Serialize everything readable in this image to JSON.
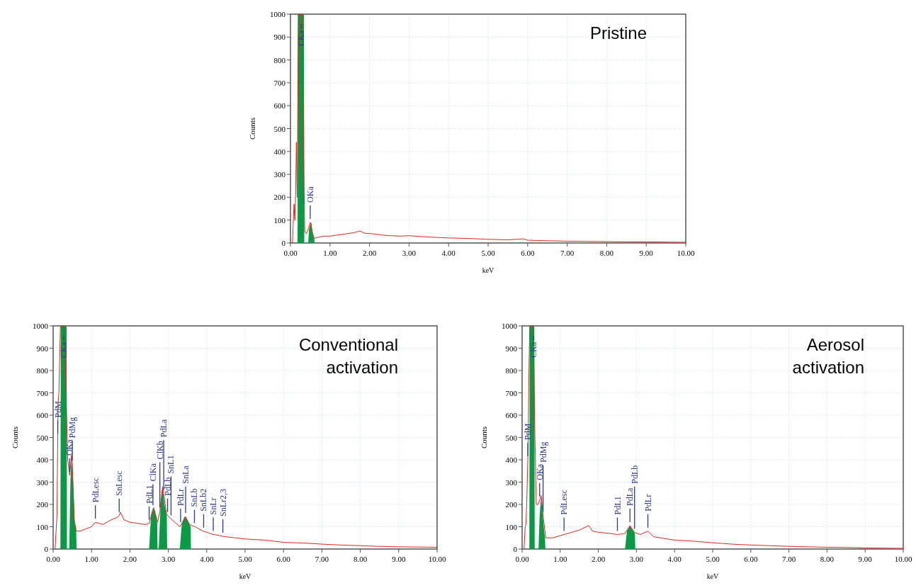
{
  "chart_data": [
    {
      "type": "line",
      "title": "Pristine",
      "xlabel": "keV",
      "ylabel": "Counts",
      "grid": true,
      "xlim": [
        0,
        10
      ],
      "xticks": [
        {
          "value": 0,
          "label": "0.00"
        },
        {
          "value": 1,
          "label": "1.00"
        },
        {
          "value": 2,
          "label": "2.00"
        },
        {
          "value": 3,
          "label": "3.00"
        },
        {
          "value": 4,
          "label": "4.00"
        },
        {
          "value": 5,
          "label": "5.00"
        },
        {
          "value": 6,
          "label": "6.00"
        },
        {
          "value": 7,
          "label": "7.00"
        },
        {
          "value": 8,
          "label": "8.00"
        },
        {
          "value": 9,
          "label": "9.00"
        },
        {
          "value": 10,
          "label": "10.00"
        }
      ],
      "ylim": [
        0,
        1000
      ],
      "yticks": [
        0,
        100,
        200,
        300,
        400,
        500,
        600,
        700,
        800,
        900,
        1000
      ],
      "series": [
        {
          "type": "area",
          "color": "#0a9a46",
          "x": [
            0.18,
            0.19,
            0.34,
            0.35,
            0.36,
            0.45,
            0.47,
            0.5,
            0.53,
            0.56,
            0.6,
            0.61
          ],
          "values": [
            0,
            1000,
            1000,
            0,
            null,
            0,
            60,
            80,
            90,
            40,
            20,
            0
          ]
        },
        {
          "color": "#e8251b",
          "x": [
            0.05,
            0.09,
            0.11,
            0.13,
            0.15,
            0.17,
            0.2,
            0.27,
            0.3,
            0.34,
            0.36,
            0.4,
            0.45,
            0.5,
            0.55,
            0.6,
            0.7,
            0.85,
            1.0,
            1.2,
            1.4,
            1.6,
            1.75,
            1.9,
            2.1,
            2.3,
            2.5,
            2.8,
            3.0,
            3.3,
            3.6,
            4.0,
            4.5,
            5.0,
            5.5,
            5.9,
            6.0,
            6.5,
            7.0,
            7.5,
            8.0,
            8.5,
            9.0,
            9.5,
            10.0
          ],
          "values": [
            0,
            170,
            100,
            210,
            440,
            200,
            1000,
            1000,
            1000,
            300,
            50,
            40,
            60,
            90,
            50,
            20,
            25,
            30,
            30,
            35,
            40,
            45,
            52,
            42,
            40,
            35,
            32,
            30,
            32,
            28,
            25,
            22,
            20,
            16,
            14,
            18,
            12,
            10,
            8,
            7,
            6,
            5,
            5,
            4,
            3
          ]
        }
      ],
      "annotations": [
        {
          "text": "CKa",
          "x": 0.27,
          "y": 1000
        },
        {
          "text": "OKa",
          "x": 0.5,
          "y": 90
        }
      ]
    },
    {
      "type": "line",
      "title": "Conventional activation",
      "xlabel": "keV",
      "ylabel": "Counts",
      "grid": true,
      "xlim": [
        0,
        10
      ],
      "xticks": [
        {
          "value": 0,
          "label": "0.00"
        },
        {
          "value": 1,
          "label": "1.00"
        },
        {
          "value": 2,
          "label": "2.00"
        },
        {
          "value": 3,
          "label": "3.00"
        },
        {
          "value": 4,
          "label": "4.00"
        },
        {
          "value": 5,
          "label": "5.00"
        },
        {
          "value": 6,
          "label": "6.00"
        },
        {
          "value": 7,
          "label": "7.00"
        },
        {
          "value": 8,
          "label": "8.00"
        },
        {
          "value": 9,
          "label": "9.00"
        },
        {
          "value": 10,
          "label": "10.00"
        }
      ],
      "ylim": [
        0,
        1000
      ],
      "yticks": [
        0,
        100,
        200,
        300,
        400,
        500,
        600,
        700,
        800,
        900,
        1000
      ],
      "series": [
        {
          "type": "area",
          "color": "#0a9a46",
          "x": [
            0.19,
            0.2,
            0.35,
            0.36,
            0.37,
            0.42,
            0.45,
            0.48,
            0.52,
            0.56,
            0.6,
            0.61,
            0.62,
            2.5,
            2.55,
            2.62,
            2.68,
            2.71,
            2.72,
            2.73,
            2.75,
            2.8,
            2.85,
            2.9,
            2.96,
            2.97,
            2.98,
            3.3,
            3.35,
            3.42,
            3.5,
            3.58,
            3.59
          ],
          "values": [
            0,
            1000,
            1000,
            0,
            null,
            0,
            300,
            420,
            300,
            120,
            90,
            0,
            null,
            0,
            150,
            185,
            150,
            120,
            0,
            null,
            0,
            200,
            280,
            200,
            150,
            0,
            null,
            0,
            110,
            145,
            130,
            100,
            0
          ]
        },
        {
          "color": "#e8251b",
          "x": [
            0.05,
            0.1,
            0.12,
            0.13,
            0.15,
            0.19,
            0.27,
            0.3,
            0.33,
            0.38,
            0.43,
            0.48,
            0.5,
            0.55,
            0.6,
            0.7,
            0.85,
            1.0,
            1.1,
            1.3,
            1.5,
            1.65,
            1.72,
            1.75,
            1.85,
            2.0,
            2.2,
            2.4,
            2.5,
            2.6,
            2.62,
            2.72,
            2.78,
            2.85,
            2.88,
            2.95,
            2.98,
            3.07,
            3.1,
            3.3,
            3.32,
            3.45,
            3.55,
            3.68,
            3.7,
            3.9,
            3.92,
            4.17,
            4.2,
            4.42,
            4.5,
            5.0,
            5.5,
            6.0,
            6.5,
            7.0,
            7.5,
            8.0,
            8.5,
            9.0,
            9.5,
            10.0
          ],
          "values": [
            0,
            150,
            500,
            660,
            700,
            1000,
            1000,
            1000,
            740,
            400,
            330,
            420,
            380,
            130,
            80,
            80,
            90,
            100,
            120,
            110,
            130,
            140,
            150,
            165,
            130,
            120,
            115,
            110,
            115,
            180,
            185,
            120,
            170,
            280,
            250,
            160,
            150,
            135,
            130,
            100,
            105,
            145,
            110,
            100,
            100,
            80,
            80,
            65,
            65,
            57,
            55,
            45,
            40,
            30,
            27,
            22,
            18,
            15,
            12,
            10,
            9,
            8
          ]
        }
      ],
      "annotations": [
        {
          "text": "PdM",
          "x": 0.12,
          "y": 500
        },
        {
          "text": "CKa",
          "x": 0.27,
          "y": 1000
        },
        {
          "text": "OKa",
          "x": 0.43,
          "y": 330
        },
        {
          "text": "PdMg",
          "x": 0.5,
          "y": 380
        },
        {
          "text": "PdLesc",
          "x": 1.1,
          "y": 120
        },
        {
          "text": "SnLesc",
          "x": 1.72,
          "y": 150
        },
        {
          "text": "PdL1",
          "x": 2.5,
          "y": 115
        },
        {
          "text": "ClKa",
          "x": 2.6,
          "y": 180
        },
        {
          "text": "ClKb",
          "x": 2.78,
          "y": 170
        },
        {
          "text": "PdLa",
          "x": 2.88,
          "y": 250
        },
        {
          "text": "PdLb",
          "x": 2.98,
          "y": 150
        },
        {
          "text": "SnL1",
          "x": 3.07,
          "y": 135
        },
        {
          "text": "PdLr",
          "x": 3.32,
          "y": 105
        },
        {
          "text": "SnLa",
          "x": 3.45,
          "y": 145
        },
        {
          "text": "SnLb",
          "x": 3.68,
          "y": 100
        },
        {
          "text": "SnLb2",
          "x": 3.92,
          "y": 80
        },
        {
          "text": "SnLr",
          "x": 4.17,
          "y": 65
        },
        {
          "text": "SnLr2,3",
          "x": 4.42,
          "y": 57
        }
      ]
    },
    {
      "type": "line",
      "title": "Aerosol activation",
      "xlabel": "keV",
      "ylabel": "Counts",
      "grid": true,
      "xlim": [
        0,
        10
      ],
      "xticks": [
        {
          "value": 0,
          "label": "0.00"
        },
        {
          "value": 1,
          "label": "1.00"
        },
        {
          "value": 2,
          "label": "2.00"
        },
        {
          "value": 3,
          "label": "3.00"
        },
        {
          "value": 4,
          "label": "4.00"
        },
        {
          "value": 5,
          "label": "5.00"
        },
        {
          "value": 6,
          "label": "6.00"
        },
        {
          "value": 7,
          "label": "7.00"
        },
        {
          "value": 8,
          "label": "8.00"
        },
        {
          "value": 9,
          "label": "9.00"
        },
        {
          "value": 10,
          "label": "10.00"
        }
      ],
      "ylim": [
        0,
        1000
      ],
      "yticks": [
        0,
        100,
        200,
        300,
        400,
        500,
        600,
        700,
        800,
        900,
        1000
      ],
      "series": [
        {
          "type": "area",
          "color": "#0a9a46",
          "x": [
            0.19,
            0.2,
            0.32,
            0.33,
            0.34,
            0.43,
            0.46,
            0.5,
            0.54,
            0.58,
            0.6,
            0.61,
            0.62,
            2.7,
            2.75,
            2.83,
            2.9,
            2.96,
            2.97
          ],
          "values": [
            0,
            1000,
            1000,
            0,
            null,
            0,
            150,
            240,
            150,
            80,
            50,
            0,
            null,
            0,
            80,
            105,
            85,
            70,
            0
          ]
        },
        {
          "color": "#e8251b",
          "x": [
            0.05,
            0.08,
            0.1,
            0.12,
            0.15,
            0.17,
            0.18,
            0.2,
            0.3,
            0.33,
            0.37,
            0.42,
            0.46,
            0.5,
            0.55,
            0.62,
            0.8,
            1.0,
            1.1,
            1.2,
            1.5,
            1.75,
            1.85,
            2.0,
            2.3,
            2.5,
            2.7,
            2.83,
            2.95,
            3.1,
            3.3,
            3.45,
            4.0,
            4.5,
            5.0,
            5.5,
            6.0,
            6.5,
            7.0,
            7.5,
            8.0,
            8.5,
            9.0,
            9.5,
            10.0
          ],
          "values": [
            0,
            100,
            110,
            200,
            400,
            650,
            800,
            1000,
            1000,
            560,
            200,
            200,
            220,
            240,
            150,
            50,
            50,
            60,
            65,
            70,
            85,
            105,
            80,
            75,
            70,
            65,
            70,
            105,
            75,
            65,
            80,
            55,
            40,
            35,
            28,
            22,
            18,
            15,
            12,
            10,
            8,
            7,
            5,
            4,
            3
          ]
        }
      ],
      "annotations": [
        {
          "text": "PdM",
          "x": 0.15,
          "y": 400
        },
        {
          "text": "CKa",
          "x": 0.3,
          "y": 1000
        },
        {
          "text": "OKa",
          "x": 0.46,
          "y": 220
        },
        {
          "text": "PdMg",
          "x": 0.55,
          "y": 150
        },
        {
          "text": "PdLesc",
          "x": 1.1,
          "y": 65
        },
        {
          "text": "PdL1",
          "x": 2.5,
          "y": 65
        },
        {
          "text": "PdLa",
          "x": 2.83,
          "y": 105
        },
        {
          "text": "PdLb",
          "x": 2.95,
          "y": 75
        },
        {
          "text": "PdLr",
          "x": 3.3,
          "y": 80
        }
      ]
    }
  ]
}
